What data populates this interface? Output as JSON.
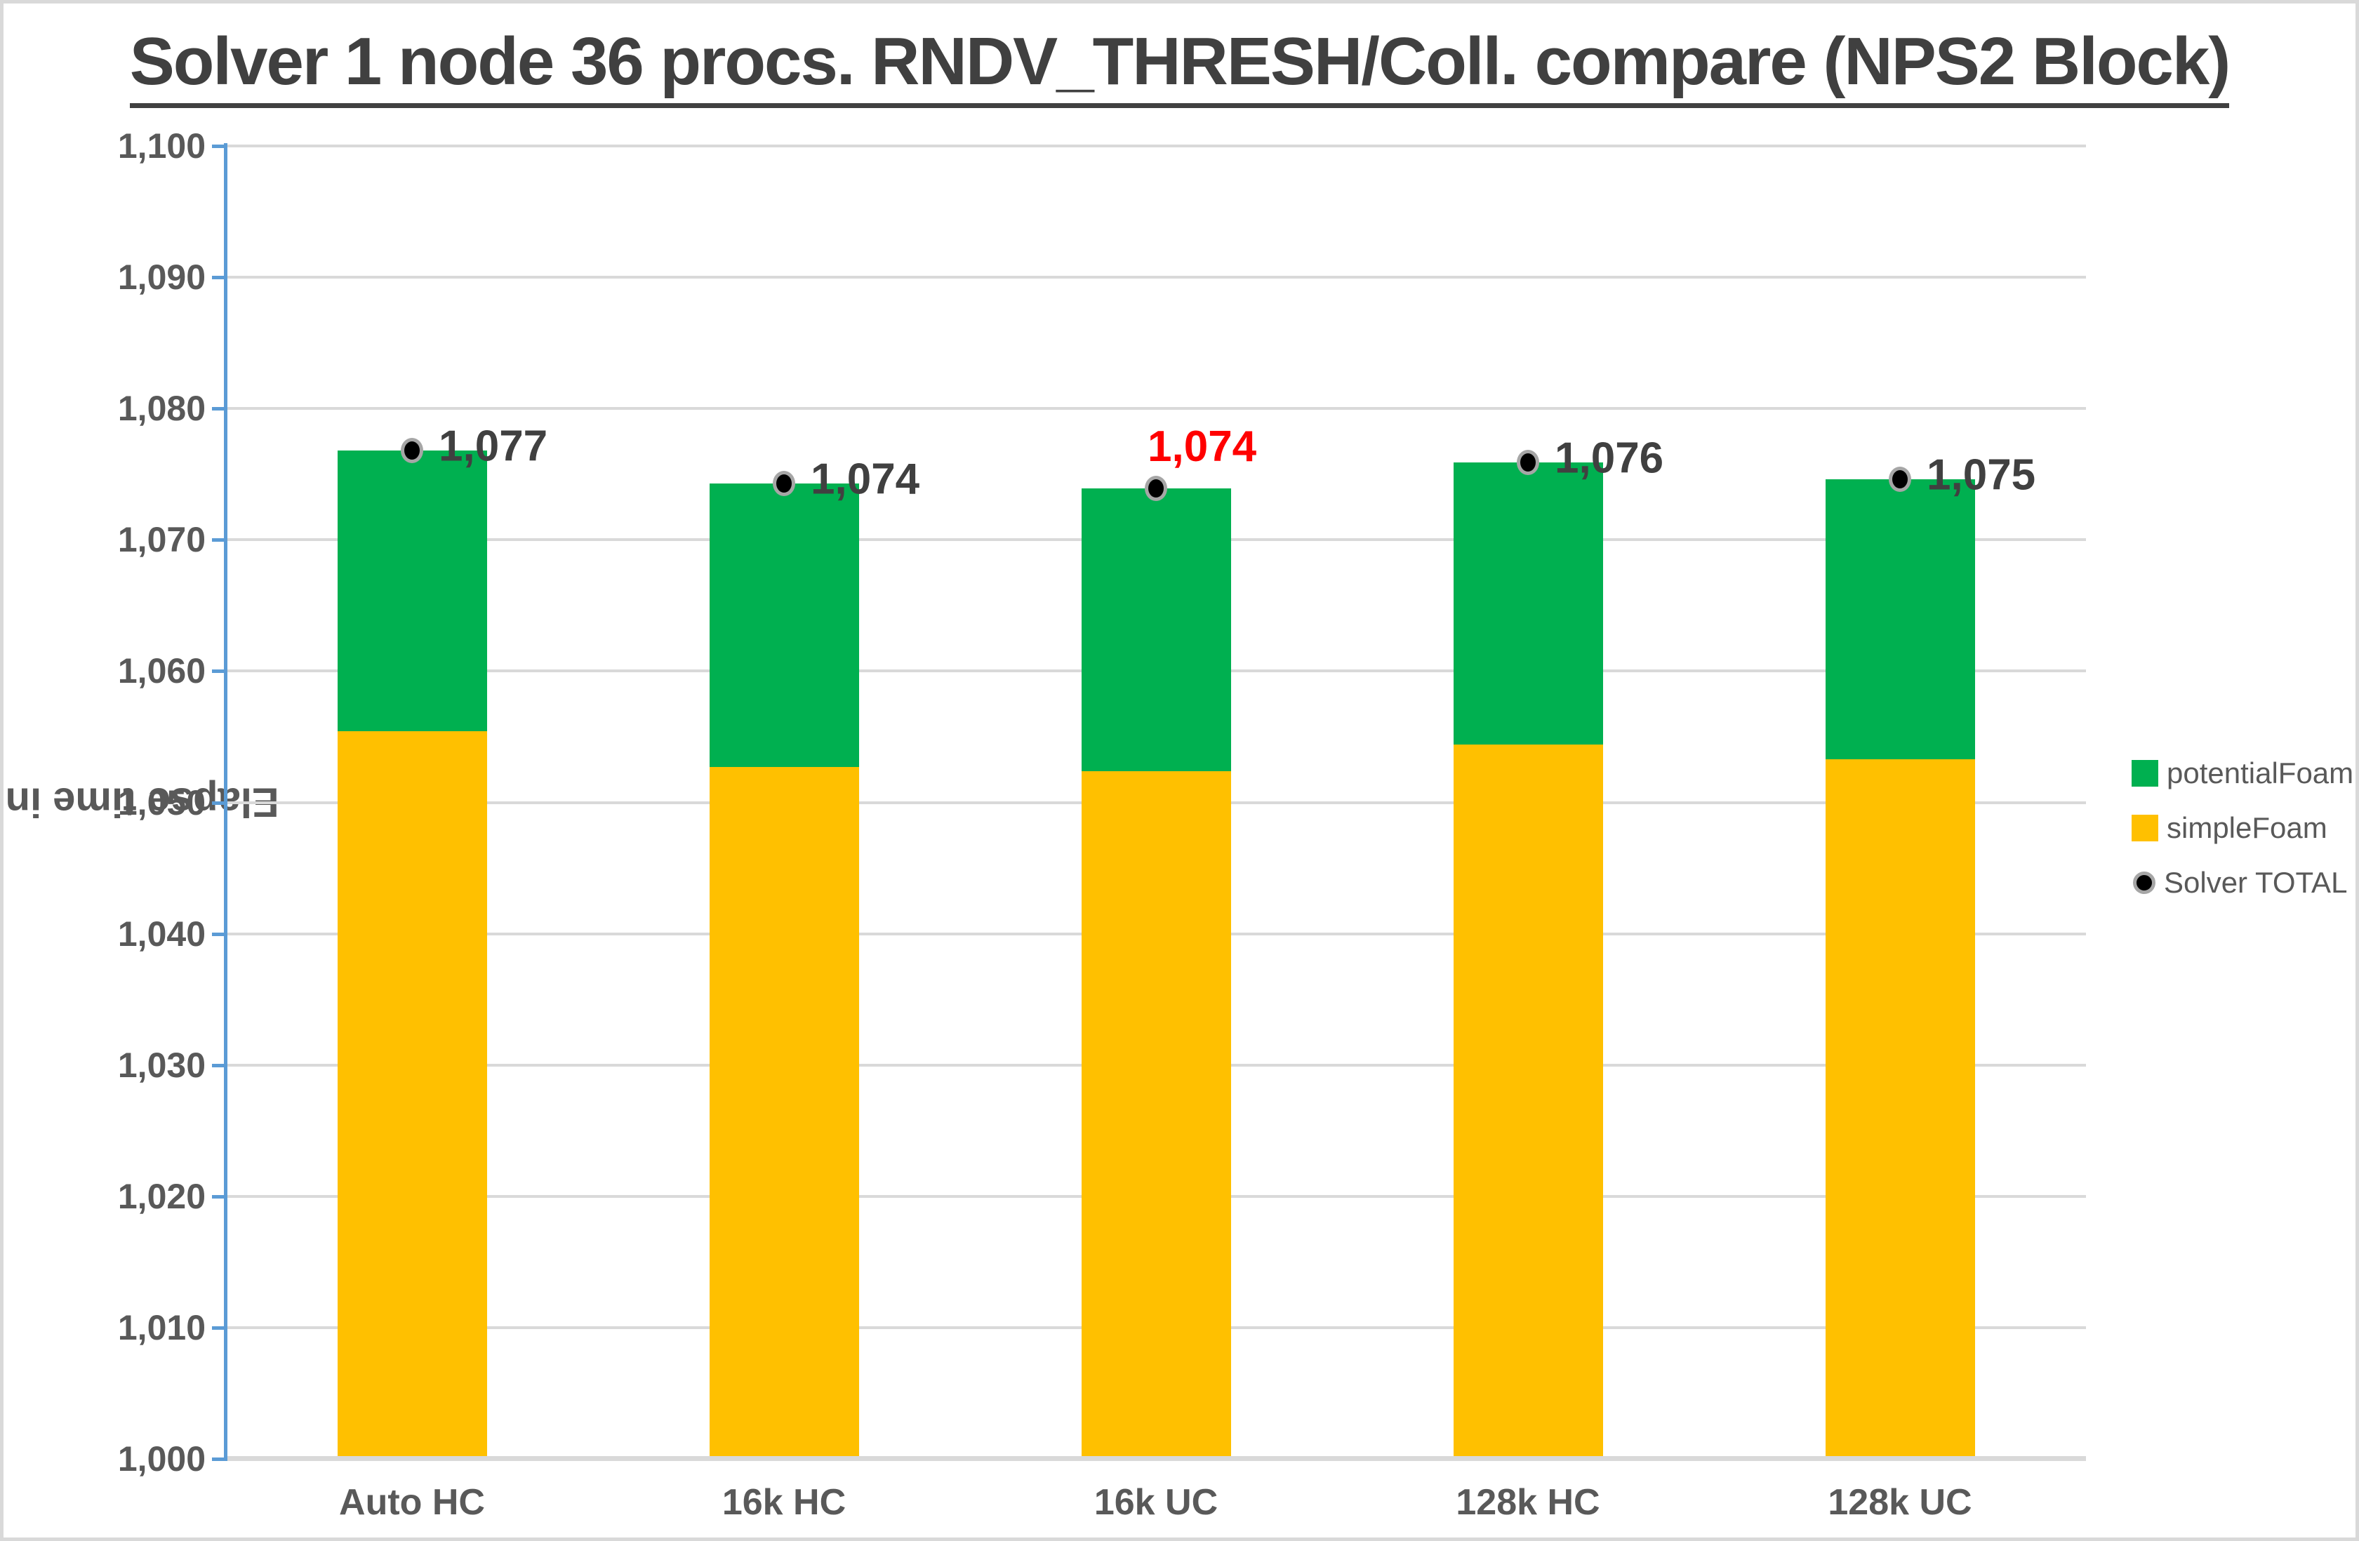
{
  "frame": {
    "border_color": "#D9D9D9",
    "background": "#FFFFFF"
  },
  "chart_data": {
    "type": "bar",
    "stacked": true,
    "title": "Solver 1 node 36 procs. RNDV_THRESH/Coll. compare (NPS2 Block)",
    "ylabel": "Elapse time in second",
    "xlabel": "",
    "categories": [
      "Auto HC",
      "16k HC",
      "16k UC",
      "128k HC",
      "128k UC"
    ],
    "series": [
      {
        "name": "simpleFoam",
        "color": "#FFC000",
        "values": [
          1055.4,
          1052.7,
          1052.4,
          1054.4,
          1053.3
        ]
      },
      {
        "name": "potentialFoam",
        "color": "#00B050",
        "values": [
          21.4,
          21.6,
          21.5,
          21.5,
          21.3
        ]
      }
    ],
    "scatter_series": {
      "name": "Solver TOTAL",
      "marker_fill": "#000000",
      "marker_ring": "#A6A6A6",
      "values": [
        1076.8,
        1074.3,
        1073.9,
        1075.9,
        1074.6
      ],
      "data_labels": [
        {
          "text": "1,077",
          "color": "#404040",
          "position": "right"
        },
        {
          "text": "1,074",
          "color": "#404040",
          "position": "right"
        },
        {
          "text": "1,074",
          "color": "#FF0000",
          "position": "above"
        },
        {
          "text": "1,076",
          "color": "#404040",
          "position": "right"
        },
        {
          "text": "1,075",
          "color": "#404040",
          "position": "right"
        }
      ]
    },
    "ylim": [
      1000,
      1100
    ],
    "ytick_step": 10,
    "ytick_labels": [
      "1,000",
      "1,010",
      "1,020",
      "1,030",
      "1,040",
      "1,050",
      "1,060",
      "1,070",
      "1,080",
      "1,090",
      "1,100"
    ],
    "grid": true,
    "gridline_color": "#D9D9D9",
    "axis_color": "#5B9BD5",
    "xaxis_line_color": "#D9D9D9",
    "legend_position": "right"
  },
  "legend": {
    "items": [
      {
        "label": "potentialFoam",
        "swatch": "square",
        "color": "#00B050"
      },
      {
        "label": "simpleFoam",
        "swatch": "square",
        "color": "#FFC000"
      },
      {
        "label": "Solver TOTAL",
        "swatch": "circle",
        "color": "#000000",
        "ring": "#A6A6A6"
      }
    ]
  }
}
